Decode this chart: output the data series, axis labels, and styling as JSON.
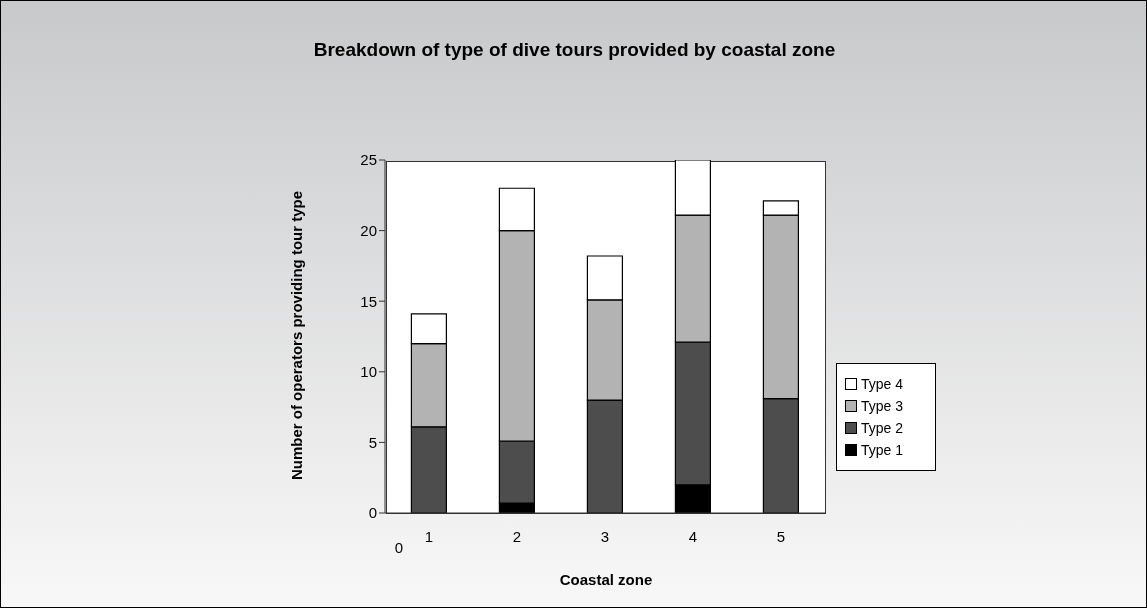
{
  "chart_data": {
    "type": "bar",
    "title": "Breakdown of type of dive tours provided by coastal zone",
    "xlabel": "Coastal zone",
    "ylabel": "Number of operators providing tour type",
    "categories": [
      "1",
      "2",
      "3",
      "4",
      "5"
    ],
    "stacked": true,
    "series": [
      {
        "name": "Type 1",
        "color": "#000000",
        "values": [
          0,
          0.7,
          0,
          2,
          0
        ]
      },
      {
        "name": "Type 2",
        "color": "#4d4d4d",
        "values": [
          6.1,
          4.4,
          8,
          10.1,
          8.1
        ]
      },
      {
        "name": "Type 3",
        "color": "#b3b3b3",
        "values": [
          5.9,
          14.9,
          7.1,
          9,
          13
        ]
      },
      {
        "name": "Type 4",
        "color": "#ffffff",
        "values": [
          2.1,
          3,
          3.1,
          3.9,
          1
        ]
      }
    ],
    "ylim": [
      0,
      25
    ],
    "yticks": [
      0,
      5,
      10,
      15,
      20,
      25
    ],
    "legend": "right",
    "annotations": [
      "0"
    ]
  }
}
